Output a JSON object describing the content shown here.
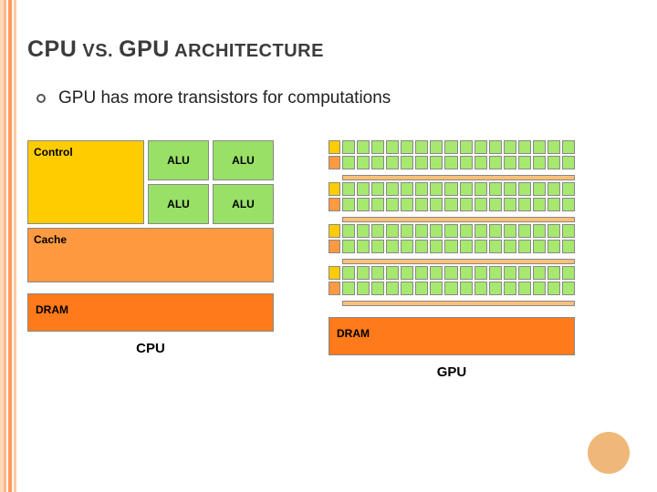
{
  "stripes": [
    {
      "color": "#ffd9b8",
      "w": 4
    },
    {
      "color": "#ffb98a",
      "w": 3
    },
    {
      "color": "#ffffff",
      "w": 2
    },
    {
      "color": "#ff9a5c",
      "w": 4
    },
    {
      "color": "#ffffff",
      "w": 2
    },
    {
      "color": "#ffc9a0",
      "w": 3
    }
  ],
  "title": {
    "parts": [
      "CPU",
      " VS. ",
      "GPU",
      " ARCHITECTURE"
    ]
  },
  "bullet": "GPU has more transistors for computations",
  "colors": {
    "control": "#ffcc00",
    "alu": "#99e066",
    "cache": "#ff9a40",
    "dram": "#ff7a1a",
    "gpu_alu": "#a7e86f",
    "gpu_ctrl_top": "#ffcc00",
    "gpu_ctrl_bot": "#ff9a40",
    "gpu_thin": "#ffc078",
    "accent_circle": "#f0b878"
  },
  "cpu": {
    "control_label": "Control",
    "alu_label": "ALU",
    "cache_label": "Cache",
    "dram_label": "DRAM",
    "caption": "CPU"
  },
  "gpu": {
    "row_groups": 4,
    "cells_per_row": 16,
    "dram_label": "DRAM",
    "caption": "GPU"
  }
}
